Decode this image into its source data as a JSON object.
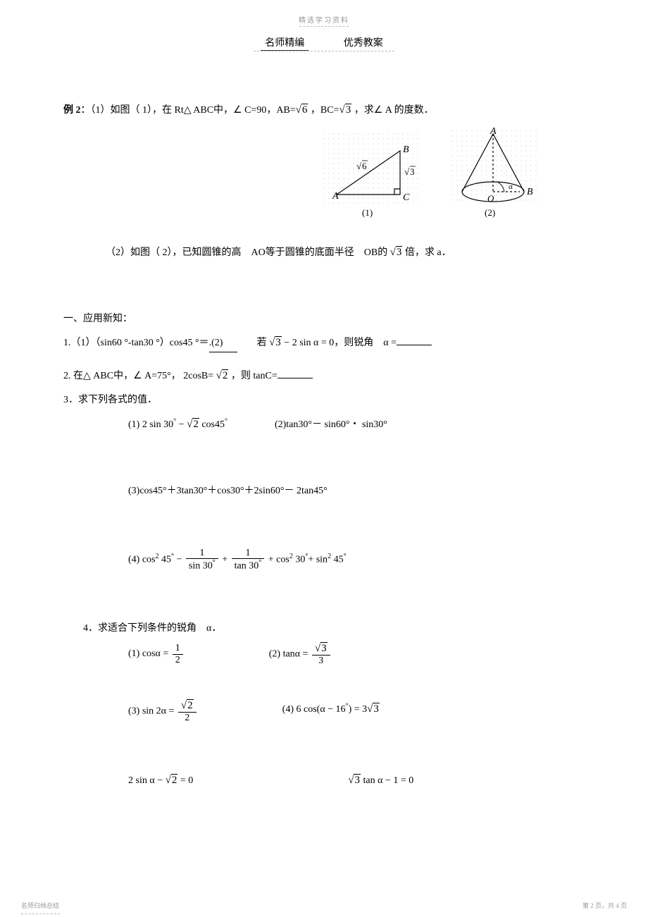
{
  "header": {
    "top": "精选学习资料",
    "subLeft": "名师精编",
    "subRight": "优秀教案"
  },
  "example2": {
    "label": "例 2",
    "part1_prefix": "：（1）如图（ 1），在 Rt",
    "part1_mid": " ABC中，",
    "part1_c": " C=90，AB=",
    "part1_bc": " ，BC=",
    "part1_tail": " ，求",
    "part1_a": " A 的度数．",
    "part2": "（2）如图（ 2），已知圆锥的高　AO等于圆锥的底面半径　OB的 ",
    "part2_tail": " 倍，求 a．"
  },
  "figures": {
    "sqrt6": "6",
    "sqrt3": "3",
    "labels": {
      "A": "A",
      "B": "B",
      "C": "C",
      "O": "O",
      "alpha": "α"
    },
    "cap1": "(1)",
    "cap2": "(2)"
  },
  "section1": {
    "title": "一、应用新知：",
    "q1_a": "1.（1）（sin60 °-tan30 °）cos45 °＝",
    "q1_b_label": ".(2)",
    "q1_b": "　　若 ",
    "q1_b_expr_tail": "，则锐角　α =",
    "q2": "2. 在",
    "q2_mid": " ABC中，",
    "q2_a": " A=75°， 2cosB= ",
    "q2_tail": " ，则 tanC=",
    "q3": "3．求下列各式的值．",
    "q3_1": "(1) 2 sin 30",
    "q3_1b": "cos45",
    "q3_2": "(2)tan30°－ sin60°・ sin30°",
    "q3_3": "(3)cos45°＋3tan30°＋cos30°＋2sin60°－ 2tan45°",
    "q3_4_lead": "(4) cos",
    "q3_4_a": " 45",
    "q3_4_plus1": "+",
    "q3_4_plus2": "+ cos",
    "q3_4_30": " 30",
    "q3_4_plus3": "+ sin",
    "q3_4_45": " 45",
    "q3_4_frac1_num": "1",
    "q3_4_frac1_den_a": "sin 30",
    "q3_4_frac2_num": "1",
    "q3_4_frac2_den_a": "tan 30",
    "q4": "4．求适合下列条件的锐角　α．",
    "q4_1": "(1) cos",
    "q4_1_eq": " =",
    "q4_1_num": "1",
    "q4_1_den": "2",
    "q4_2": "(2) tan",
    "q4_2_eq": " =",
    "q4_2_den": "3",
    "q4_3": "(3) sin 2",
    "q4_3_eq": " =",
    "q4_3_den": "2",
    "q4_4": "(4) 6 cos(",
    "q4_4_mid": " − 16",
    "q4_4_tail": ") = 3",
    "q4_5a": "2 sin ",
    "q4_5a_tail": " = 0",
    "q4_5b_lead": " tan ",
    "q4_5b_tail": " − 1 = 0"
  },
  "math": {
    "minus": "−",
    "alpha": "α",
    "sqrt3": "3",
    "sqrt2": "2",
    "sqrt6": "6",
    "triangle": "△",
    "angle": "∠",
    "eq0": " = 0",
    "two": "2"
  },
  "footer": {
    "left": "名师归纳总结",
    "right": "第 2 页，共 4 页"
  },
  "style": {
    "page_bg": "#ffffff",
    "text_color": "#000000",
    "muted_color": "#999999",
    "fontsize_body": 14,
    "fontsize_small": 10,
    "fontsize_footer": 9,
    "fig_dot_color": "#cccccc",
    "fig_stroke": "#000000",
    "fig_stroke_width": 1.2
  }
}
